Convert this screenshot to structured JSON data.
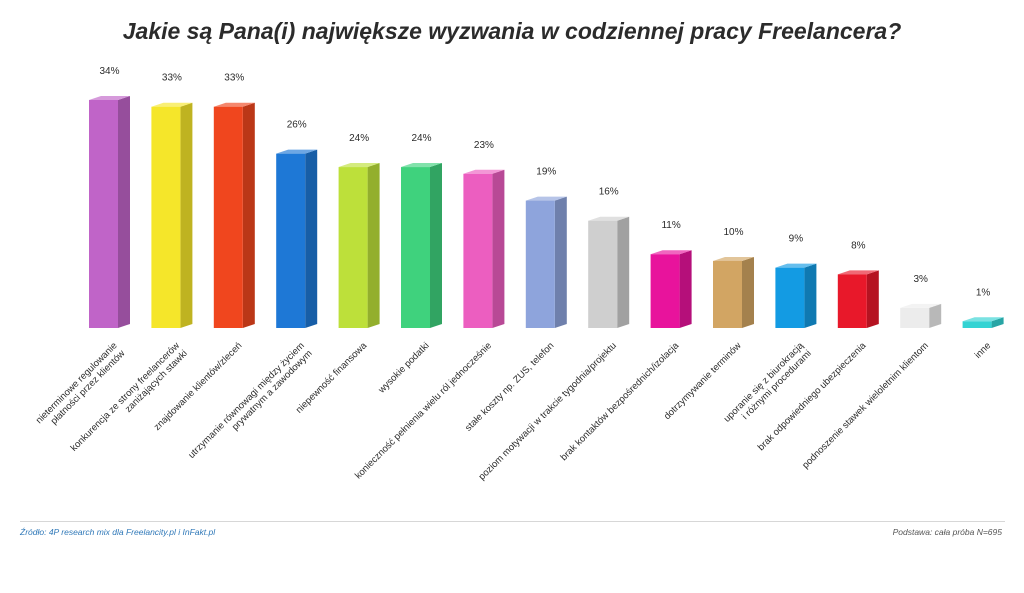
{
  "title": "Jakie są Pana(i) największe wyzwania w codziennej pracy Freelancera?",
  "footer": {
    "source": "Źródło: 4P research mix dla Freelancity.pl i InFakt.pl",
    "base": "Podstawa: cała próba N=695"
  },
  "chart_data": {
    "type": "bar",
    "title": "Jakie są Pana(i) największe wyzwania w codziennej pracy Freelancera?",
    "xlabel": "",
    "ylabel": "",
    "ylim": [
      0,
      34
    ],
    "grid": false,
    "legend": "none",
    "categories": [
      [
        "nieterminowe regulowanie",
        "płatności przez klientów"
      ],
      [
        "konkurencja ze strony freelancerów",
        "zaniżających stawki"
      ],
      [
        "znajdowanie klientów/zleceń"
      ],
      [
        "utrzymanie równowagi między życiem",
        "prywatnym a zawodowym"
      ],
      [
        "niepewność finansowa"
      ],
      [
        "wysokie podatki"
      ],
      [
        "konieczność pełnienia wielu ról jednocześnie"
      ],
      [
        "stałe koszty np. ZUS, telefon"
      ],
      [
        "poziom motywacji w trakcie tygodnia/projektu"
      ],
      [
        "brak kontaktów bezpośrednich/izolacja"
      ],
      [
        "dotrzymywanie terminów"
      ],
      [
        "uporanie się z biurokracją",
        "i różnymi procedurami"
      ],
      [
        "brak odpowiedniego ubezpieczenia"
      ],
      [
        "podnoszenie stawek wieloletnim klientom"
      ],
      [
        "inne"
      ]
    ],
    "values": [
      34,
      33,
      33,
      26,
      24,
      24,
      23,
      19,
      16,
      11,
      10,
      9,
      8,
      3,
      1
    ],
    "value_labels": [
      "34%",
      "33%",
      "33%",
      "26%",
      "24%",
      "24%",
      "23%",
      "19%",
      "16%",
      "11%",
      "10%",
      "9%",
      "8%",
      "3%",
      "1%"
    ],
    "colors": [
      "#c064c8",
      "#f5e62a",
      "#f0461e",
      "#1e78d6",
      "#bde03a",
      "#3fd27d",
      "#ec5ec0",
      "#8ea4dc",
      "#cfcfcf",
      "#e8139c",
      "#d2a563",
      "#139be3",
      "#e8182a",
      "#ececec",
      "#33d3d3"
    ]
  }
}
